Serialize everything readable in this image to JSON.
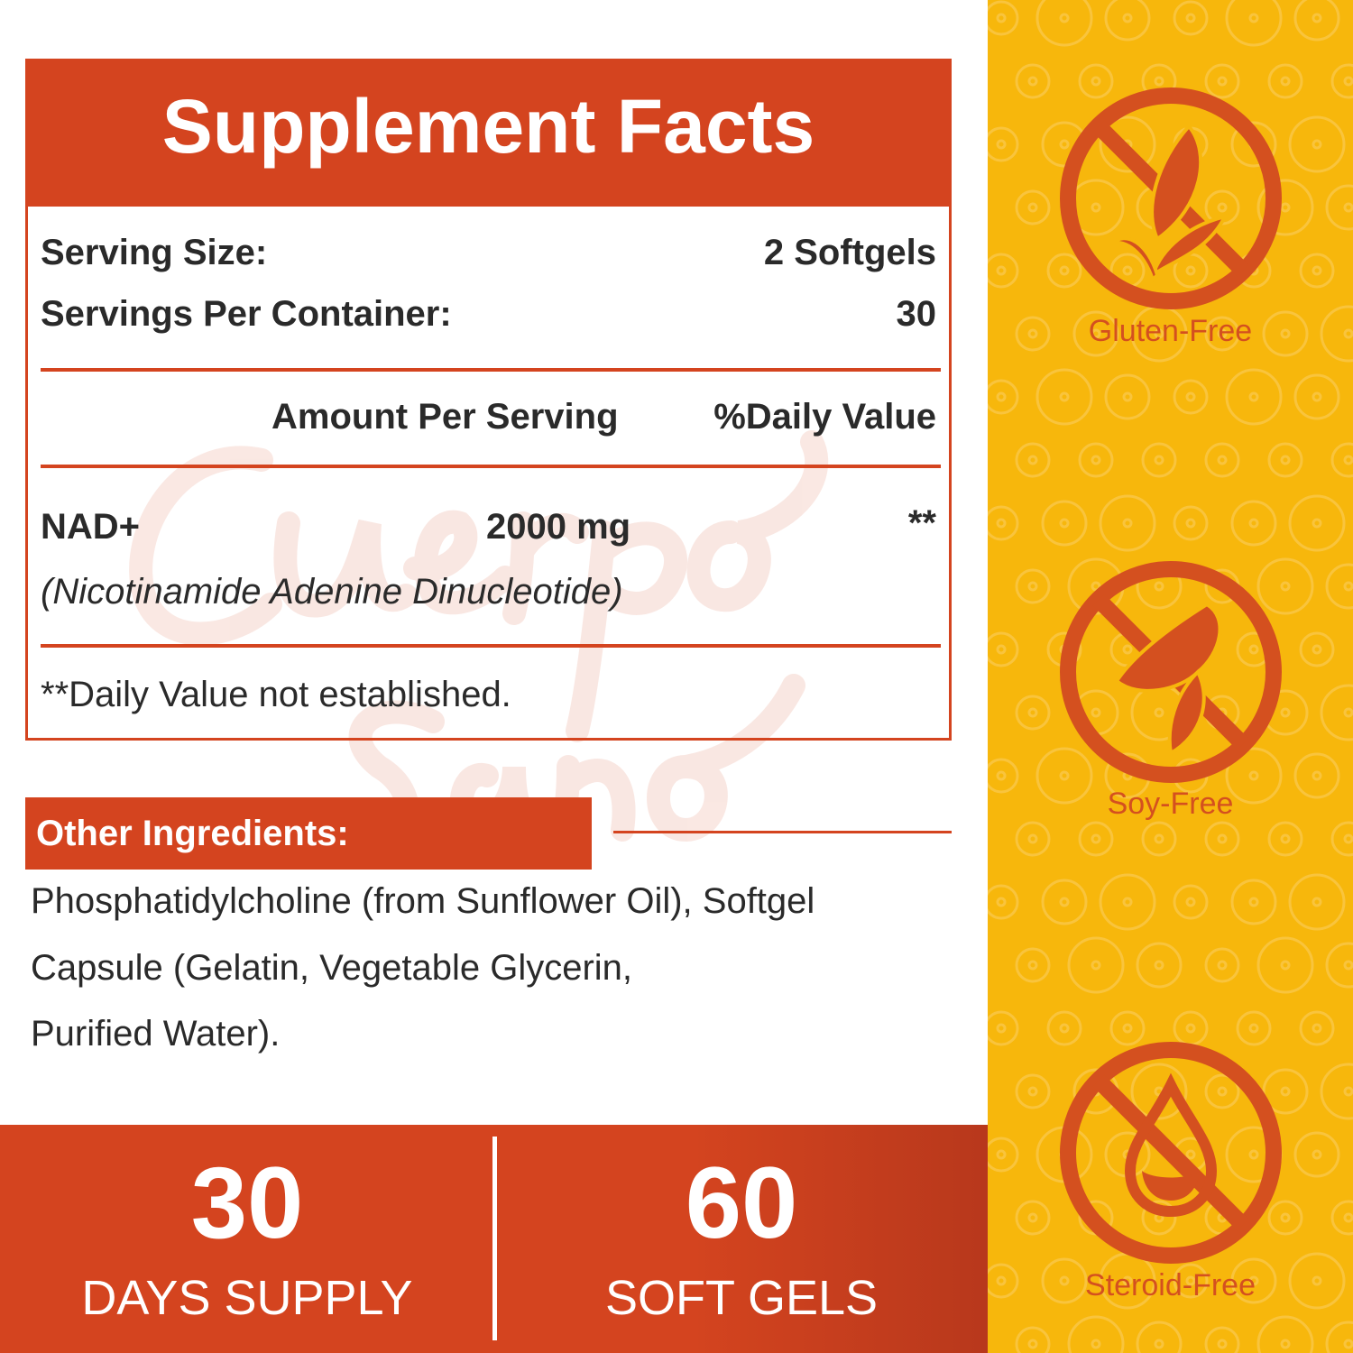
{
  "colors": {
    "accent": "#D4441F",
    "side": "#F7B70C",
    "icon": "#D4501F"
  },
  "watermark": "Cuerpo Sano",
  "header": {
    "title": "Supplement Facts"
  },
  "facts": {
    "serving_size_label": "Serving Size:",
    "serving_size_value": "2 Softgels",
    "servings_label": "Servings Per Container:",
    "servings_value": "30",
    "amount_header": "Amount Per Serving",
    "dv_header": "%Daily Value",
    "ingredient": {
      "name": "NAD+",
      "amount": "2000 mg",
      "dv": "**",
      "full_name": "(Nicotinamide Adenine Dinucleotide)"
    },
    "footnote": "**Daily Value not established."
  },
  "other": {
    "title": "Other Ingredients:",
    "lines": [
      "Phosphatidylcholine (from Sunflower Oil), Softgel",
      "Capsule (Gelatin, Vegetable Glycerin,",
      "Purified Water)."
    ]
  },
  "band": {
    "left_num": "30",
    "left_label": "DAYS SUPPLY",
    "right_num": "60",
    "right_label": "SOFT GELS"
  },
  "badges": [
    {
      "icon": "no-wheat-icon",
      "label": "Gluten-Free"
    },
    {
      "icon": "no-soybean-icon",
      "label": "Soy-Free"
    },
    {
      "icon": "no-drop-icon",
      "label": "Steroid-Free"
    }
  ]
}
